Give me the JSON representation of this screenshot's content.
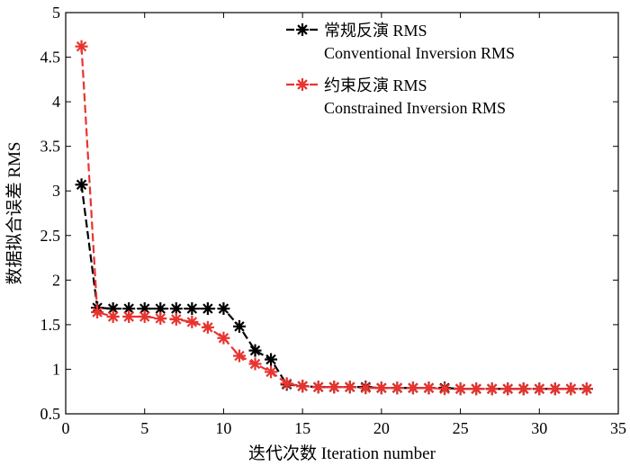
{
  "chart_data": {
    "type": "line",
    "xlabel": "迭代次数 Iteration number",
    "ylabel": "数据拟合误差 RMS",
    "xlim": [
      0,
      35
    ],
    "ylim": [
      0.5,
      5
    ],
    "xticks": [
      0,
      5,
      10,
      15,
      20,
      25,
      30,
      35
    ],
    "yticks": [
      0.5,
      1,
      1.5,
      2,
      2.5,
      3,
      3.5,
      4,
      4.5,
      5
    ],
    "legend_position": "top-right",
    "series": [
      {
        "name": "常规反演 RMS",
        "name_en": "Conventional Inversion RMS",
        "color": "#000000",
        "x": [
          1,
          2,
          3,
          4,
          5,
          6,
          7,
          8,
          9,
          10,
          11,
          12,
          13,
          14,
          15,
          16,
          17,
          18,
          19,
          20,
          21,
          22,
          23,
          24,
          25,
          26,
          27,
          28,
          29,
          30,
          31,
          32,
          33
        ],
        "values": [
          3.07,
          1.69,
          1.68,
          1.68,
          1.68,
          1.68,
          1.68,
          1.68,
          1.68,
          1.68,
          1.48,
          1.21,
          1.11,
          0.83,
          0.81,
          0.8,
          0.8,
          0.8,
          0.8,
          0.79,
          0.79,
          0.79,
          0.79,
          0.79,
          0.78,
          0.78,
          0.78,
          0.78,
          0.78,
          0.78,
          0.78,
          0.78,
          0.78
        ]
      },
      {
        "name": "约束反演 RMS",
        "name_en": "Constrained Inversion RMS",
        "color": "#e8342f",
        "x": [
          1,
          2,
          3,
          4,
          5,
          6,
          7,
          8,
          9,
          10,
          11,
          12,
          13,
          14,
          15,
          16,
          17,
          18,
          19,
          20,
          21,
          22,
          23,
          24,
          25,
          26,
          27,
          28,
          29,
          30,
          31,
          32,
          33
        ],
        "values": [
          4.62,
          1.64,
          1.59,
          1.59,
          1.59,
          1.57,
          1.56,
          1.53,
          1.47,
          1.35,
          1.15,
          1.06,
          0.97,
          0.84,
          0.81,
          0.8,
          0.8,
          0.8,
          0.79,
          0.79,
          0.79,
          0.79,
          0.79,
          0.78,
          0.78,
          0.78,
          0.78,
          0.78,
          0.78,
          0.78,
          0.78,
          0.78,
          0.78
        ]
      }
    ]
  }
}
